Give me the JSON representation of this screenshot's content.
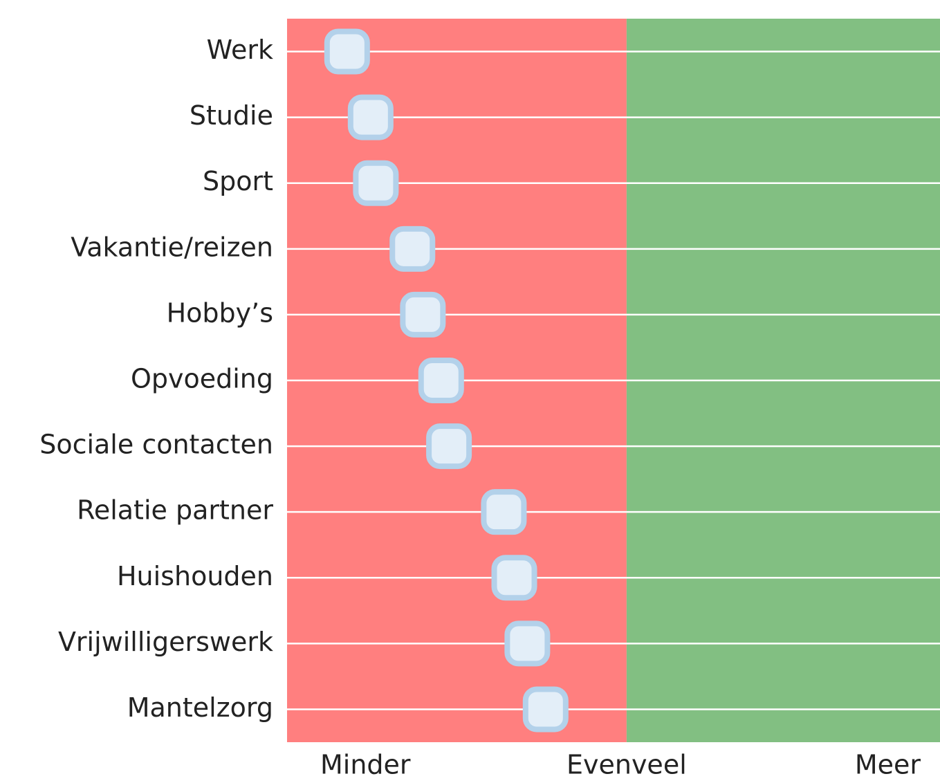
{
  "chart_data": {
    "type": "dot",
    "categories": [
      "Werk",
      "Studie",
      "Sport",
      "Vakantie/reizen",
      "Hobby’s",
      "Opvoeding",
      "Sociale contacten",
      "Relatie partner",
      "Huishouden",
      "Vrijwilligerswerk",
      "Mantelzorg"
    ],
    "values": [
      -1.07,
      -0.98,
      -0.96,
      -0.82,
      -0.78,
      -0.71,
      -0.68,
      -0.47,
      -0.43,
      -0.38,
      -0.31
    ],
    "xlim": [
      -1.3,
      1.2
    ],
    "xticks": [
      {
        "value": -1,
        "label": "Minder"
      },
      {
        "value": 0,
        "label": "Evenveel"
      },
      {
        "value": 1,
        "label": "Meer"
      }
    ],
    "negative_color": "#ff7f7f",
    "positive_color": "#82bf82",
    "marker_color": "#e3eef8",
    "marker_edge_color": "#b3d1ea",
    "grid": true
  }
}
